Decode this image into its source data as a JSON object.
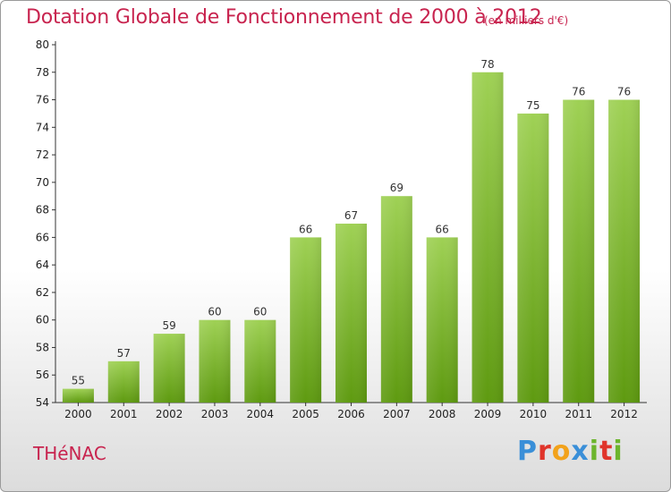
{
  "chart_data": {
    "type": "bar",
    "title": "Dotation Globale de Fonctionnement de 2000 à 2012",
    "subtitle": "(en milliers d'€)",
    "categories": [
      "2000",
      "2001",
      "2002",
      "2003",
      "2004",
      "2005",
      "2006",
      "2007",
      "2008",
      "2009",
      "2010",
      "2011",
      "2012"
    ],
    "values": [
      55,
      57,
      59,
      60,
      60,
      66,
      67,
      69,
      66,
      78,
      75,
      76,
      76
    ],
    "ylim": [
      54,
      80
    ],
    "yticks": [
      54,
      56,
      58,
      60,
      62,
      64,
      66,
      68,
      70,
      72,
      74,
      76,
      78,
      80
    ],
    "grid": false,
    "bar_color_top": "#9fd155",
    "bar_color_bottom": "#5e9a10"
  },
  "footer": {
    "commune": "THéNAC",
    "logo_letters": [
      "P",
      "r",
      "o",
      "x",
      "i",
      "t",
      "i"
    ],
    "logo_colors": [
      "#3a8fd8",
      "#e0342a",
      "#f2a21b",
      "#3a8fd8",
      "#6cb52d",
      "#e0342a",
      "#6cb52d"
    ]
  }
}
